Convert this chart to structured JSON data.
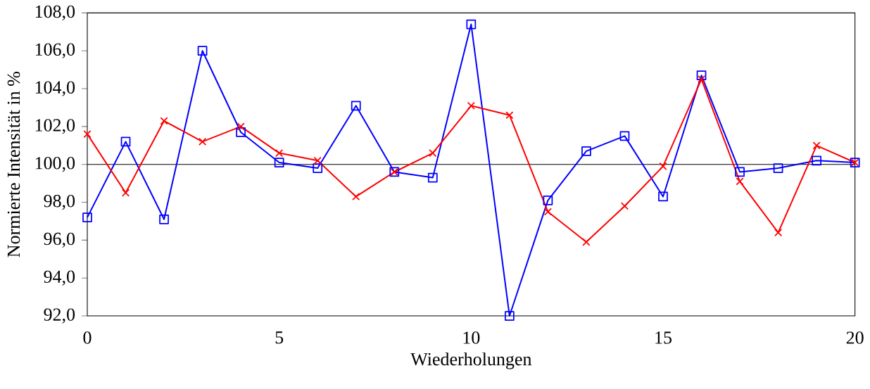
{
  "chart_data": {
    "type": "line",
    "xlabel": "Wiederholungen",
    "ylabel": "Normierte Intensität in %",
    "x": [
      0,
      1,
      2,
      3,
      4,
      5,
      6,
      7,
      8,
      9,
      10,
      11,
      12,
      13,
      14,
      15,
      16,
      17,
      18,
      19,
      20
    ],
    "series": [
      {
        "color": "#0000ff",
        "marker": "square",
        "values": [
          97.2,
          101.2,
          97.1,
          106.0,
          101.7,
          100.1,
          99.8,
          103.1,
          99.6,
          99.3,
          107.4,
          92.0,
          98.1,
          100.7,
          101.5,
          98.3,
          104.7,
          99.6,
          99.8,
          100.2,
          100.1
        ]
      },
      {
        "color": "#ff0000",
        "marker": "cross",
        "values": [
          101.6,
          98.5,
          102.3,
          101.2,
          102.0,
          100.6,
          100.2,
          98.3,
          99.6,
          100.6,
          103.1,
          102.6,
          97.5,
          95.9,
          97.8,
          99.9,
          104.5,
          99.1,
          96.4,
          101.0,
          100.1
        ]
      }
    ],
    "xlim": [
      0,
      20
    ],
    "ylim": [
      92,
      108
    ],
    "xticks": [
      0,
      5,
      10,
      15,
      20
    ],
    "yticks": [
      {
        "value": 92,
        "label": "92,0"
      },
      {
        "value": 94,
        "label": "94,0"
      },
      {
        "value": 96,
        "label": "96,0"
      },
      {
        "value": 98,
        "label": "98,0"
      },
      {
        "value": 100,
        "label": "100,0"
      },
      {
        "value": 102,
        "label": "102,0"
      },
      {
        "value": 104,
        "label": "104,0"
      },
      {
        "value": 106,
        "label": "106,0"
      },
      {
        "value": 108,
        "label": "108,0"
      }
    ],
    "ref_lines": [
      {
        "axis": "y",
        "value": 100,
        "color": "#000000"
      }
    ]
  }
}
